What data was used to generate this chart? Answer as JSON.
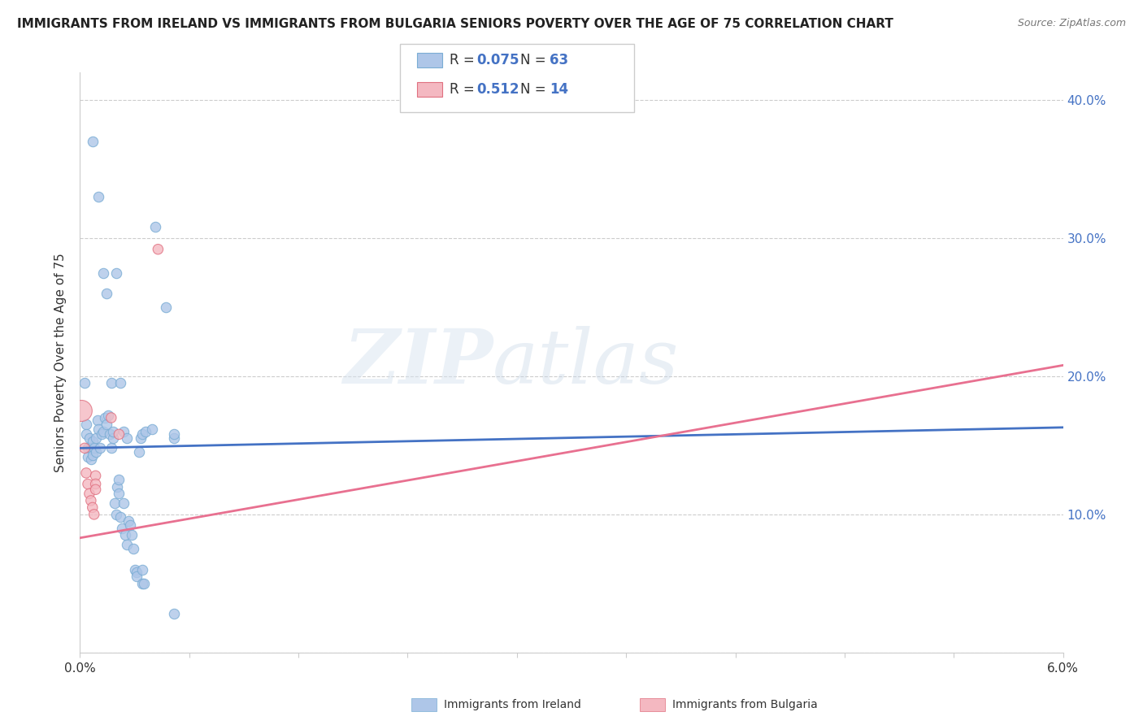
{
  "title": "IMMIGRANTS FROM IRELAND VS IMMIGRANTS FROM BULGARIA SENIORS POVERTY OVER THE AGE OF 75 CORRELATION CHART",
  "source": "Source: ZipAtlas.com",
  "ylabel": "Seniors Poverty Over the Age of 75",
  "xlim": [
    0.0,
    0.063
  ],
  "ylim": [
    0.0,
    0.42
  ],
  "yticks": [
    0.0,
    0.1,
    0.2,
    0.3,
    0.4
  ],
  "ytick_labels": [
    "",
    "10.0%",
    "20.0%",
    "30.0%",
    "40.0%"
  ],
  "xticks": [
    0.0,
    0.007,
    0.014,
    0.021,
    0.028,
    0.035,
    0.042,
    0.049,
    0.056,
    0.063
  ],
  "ireland_color": "#aec6e8",
  "ireland_edge": "#7aadd4",
  "bulgaria_color": "#f4b8c1",
  "bulgaria_edge": "#e07080",
  "ireland_line_color": "#4472c4",
  "bulgaria_line_color": "#e87090",
  "watermark_zip": "ZIP",
  "watermark_atlas": "atlas",
  "ireland_points": [
    [
      0.0003,
      0.195
    ],
    [
      0.0004,
      0.165
    ],
    [
      0.0004,
      0.158
    ],
    [
      0.0005,
      0.148
    ],
    [
      0.0005,
      0.142
    ],
    [
      0.0006,
      0.155
    ],
    [
      0.0007,
      0.148
    ],
    [
      0.0007,
      0.14
    ],
    [
      0.0008,
      0.153
    ],
    [
      0.0008,
      0.143
    ],
    [
      0.0009,
      0.148
    ],
    [
      0.001,
      0.155
    ],
    [
      0.001,
      0.145
    ],
    [
      0.0011,
      0.168
    ],
    [
      0.0012,
      0.162
    ],
    [
      0.0013,
      0.148
    ],
    [
      0.0014,
      0.158
    ],
    [
      0.0015,
      0.16
    ],
    [
      0.0016,
      0.17
    ],
    [
      0.0017,
      0.165
    ],
    [
      0.0018,
      0.172
    ],
    [
      0.0019,
      0.158
    ],
    [
      0.002,
      0.148
    ],
    [
      0.0021,
      0.155
    ],
    [
      0.0021,
      0.16
    ],
    [
      0.0022,
      0.108
    ],
    [
      0.0023,
      0.1
    ],
    [
      0.0024,
      0.12
    ],
    [
      0.0025,
      0.115
    ],
    [
      0.0025,
      0.125
    ],
    [
      0.0026,
      0.098
    ],
    [
      0.0027,
      0.09
    ],
    [
      0.0028,
      0.108
    ],
    [
      0.0029,
      0.085
    ],
    [
      0.003,
      0.078
    ],
    [
      0.0031,
      0.095
    ],
    [
      0.0032,
      0.092
    ],
    [
      0.0033,
      0.085
    ],
    [
      0.0034,
      0.075
    ],
    [
      0.0035,
      0.06
    ],
    [
      0.0036,
      0.058
    ],
    [
      0.0036,
      0.055
    ],
    [
      0.0038,
      0.145
    ],
    [
      0.0039,
      0.155
    ],
    [
      0.004,
      0.06
    ],
    [
      0.004,
      0.05
    ],
    [
      0.0041,
      0.05
    ],
    [
      0.0008,
      0.37
    ],
    [
      0.0012,
      0.33
    ],
    [
      0.0015,
      0.275
    ],
    [
      0.0017,
      0.26
    ],
    [
      0.002,
      0.195
    ],
    [
      0.0023,
      0.275
    ],
    [
      0.0026,
      0.195
    ],
    [
      0.0028,
      0.16
    ],
    [
      0.003,
      0.155
    ],
    [
      0.004,
      0.158
    ],
    [
      0.0042,
      0.16
    ],
    [
      0.0046,
      0.162
    ],
    [
      0.0048,
      0.308
    ],
    [
      0.0055,
      0.25
    ],
    [
      0.006,
      0.028
    ],
    [
      0.006,
      0.155
    ],
    [
      0.006,
      0.158
    ]
  ],
  "bulgaria_points": [
    [
      0.0001,
      0.175
    ],
    [
      0.0003,
      0.148
    ],
    [
      0.0004,
      0.13
    ],
    [
      0.0005,
      0.122
    ],
    [
      0.0006,
      0.115
    ],
    [
      0.0007,
      0.11
    ],
    [
      0.0008,
      0.105
    ],
    [
      0.0009,
      0.1
    ],
    [
      0.001,
      0.128
    ],
    [
      0.001,
      0.122
    ],
    [
      0.001,
      0.118
    ],
    [
      0.002,
      0.17
    ],
    [
      0.0025,
      0.158
    ],
    [
      0.005,
      0.292
    ]
  ],
  "bulgaria_sizes_large": [
    0
  ],
  "ireland_line_x0": 0.0,
  "ireland_line_y0": 0.148,
  "ireland_line_x1": 0.063,
  "ireland_line_y1": 0.163,
  "bulgaria_line_x0": 0.0,
  "bulgaria_line_y0": 0.083,
  "bulgaria_line_x1": 0.063,
  "bulgaria_line_y1": 0.208,
  "footer_labels": [
    "Immigrants from Ireland",
    "Immigrants from Bulgaria"
  ],
  "footer_colors": [
    "#aec6e8",
    "#f4b8c1"
  ],
  "footer_edge_colors": [
    "#7aadd4",
    "#e07080"
  ]
}
